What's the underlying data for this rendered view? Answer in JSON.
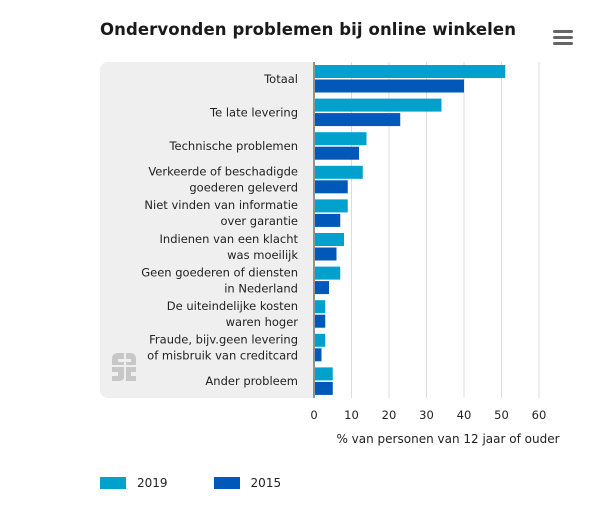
{
  "title": "Ondervonden problemen bij online winkelen",
  "menu_icon": "hamburger-menu-icon",
  "logo_icon": "cbs-logo-icon",
  "chart_data": {
    "type": "bar",
    "orientation": "horizontal",
    "categories": [
      [
        "Totaal"
      ],
      [
        "Te late levering"
      ],
      [
        "Technische problemen"
      ],
      [
        "Verkeerde of beschadigde",
        "goederen geleverd"
      ],
      [
        "Niet vinden van informatie",
        "over garantie"
      ],
      [
        "Indienen van een klacht",
        "was moeilijk"
      ],
      [
        "Geen goederen of diensten",
        "in Nederland"
      ],
      [
        "De uiteindelijke kosten",
        "waren hoger"
      ],
      [
        "Fraude, bijv.geen levering",
        "of misbruik van creditcard"
      ],
      [
        "Ander probleem"
      ]
    ],
    "series": [
      {
        "name": "2019",
        "color": "#00a1cd",
        "values": [
          51,
          34,
          14,
          13,
          9,
          8,
          7,
          3,
          3,
          5
        ]
      },
      {
        "name": "2015",
        "color": "#0058b8",
        "values": [
          40,
          23,
          12,
          9,
          7,
          6,
          4,
          3,
          2,
          5
        ]
      }
    ],
    "xlim": [
      0,
      60
    ],
    "xticks": [
      "0",
      "10",
      "20",
      "30",
      "40",
      "50",
      "60"
    ],
    "xlabel": "% van personen van 12 jaar of ouder",
    "grid": true,
    "legend_position": "bottom-left"
  }
}
